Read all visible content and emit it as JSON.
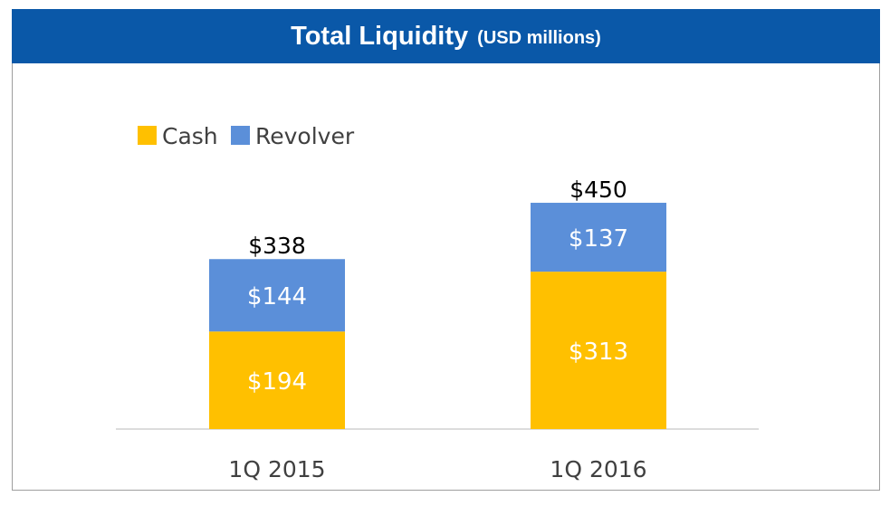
{
  "header": {
    "title": "Total Liquidity",
    "units": "(USD millions)"
  },
  "chart_data": {
    "type": "bar",
    "stacked": true,
    "categories": [
      "1Q 2015",
      "1Q 2016"
    ],
    "series": [
      {
        "name": "Cash",
        "values": [
          194,
          313
        ],
        "labels": [
          "$194",
          "$313"
        ],
        "color": "#ffc000"
      },
      {
        "name": "Revolver",
        "values": [
          144,
          137
        ],
        "labels": [
          "$144",
          "$137"
        ],
        "color": "#5b8fd9"
      }
    ],
    "totals": [
      338,
      450
    ],
    "total_labels": [
      "$338",
      "$450"
    ],
    "legend_position": "top-left",
    "grid": false,
    "ylim": [
      0,
      500
    ],
    "title": "Total Liquidity",
    "xlabel": "",
    "ylabel": ""
  }
}
